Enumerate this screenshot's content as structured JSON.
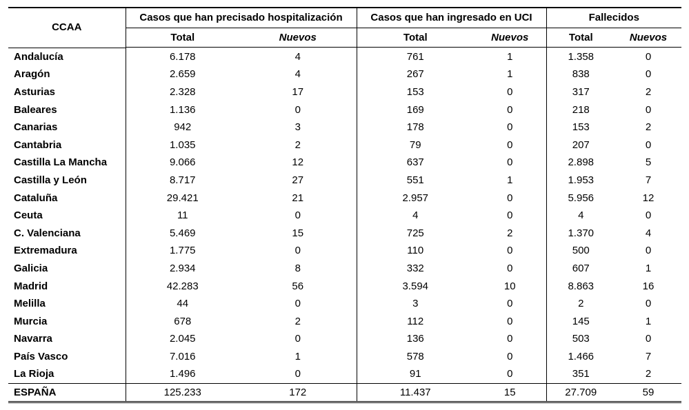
{
  "header": {
    "region_col": "CCAA",
    "groups": [
      "Casos que han precisado hospitalización",
      "Casos que han ingresado en UCI",
      "Fallecidos"
    ],
    "sub_total": "Total",
    "sub_new": "Nuevos"
  },
  "rows": [
    {
      "name": "Andalucía",
      "hosp_total": "6.178",
      "hosp_new": "4",
      "uci_total": "761",
      "uci_new": "1",
      "fall_total": "1.358",
      "fall_new": "0"
    },
    {
      "name": "Aragón",
      "hosp_total": "2.659",
      "hosp_new": "4",
      "uci_total": "267",
      "uci_new": "1",
      "fall_total": "838",
      "fall_new": "0"
    },
    {
      "name": "Asturias",
      "hosp_total": "2.328",
      "hosp_new": "17",
      "uci_total": "153",
      "uci_new": "0",
      "fall_total": "317",
      "fall_new": "2"
    },
    {
      "name": "Baleares",
      "hosp_total": "1.136",
      "hosp_new": "0",
      "uci_total": "169",
      "uci_new": "0",
      "fall_total": "218",
      "fall_new": "0"
    },
    {
      "name": "Canarias",
      "hosp_total": "942",
      "hosp_new": "3",
      "uci_total": "178",
      "uci_new": "0",
      "fall_total": "153",
      "fall_new": "2"
    },
    {
      "name": "Cantabria",
      "hosp_total": "1.035",
      "hosp_new": "2",
      "uci_total": "79",
      "uci_new": "0",
      "fall_total": "207",
      "fall_new": "0"
    },
    {
      "name": "Castilla La Mancha",
      "hosp_total": "9.066",
      "hosp_new": "12",
      "uci_total": "637",
      "uci_new": "0",
      "fall_total": "2.898",
      "fall_new": "5"
    },
    {
      "name": "Castilla y León",
      "hosp_total": "8.717",
      "hosp_new": "27",
      "uci_total": "551",
      "uci_new": "1",
      "fall_total": "1.953",
      "fall_new": "7"
    },
    {
      "name": "Cataluña",
      "hosp_total": "29.421",
      "hosp_new": "21",
      "uci_total": "2.957",
      "uci_new": "0",
      "fall_total": "5.956",
      "fall_new": "12"
    },
    {
      "name": "Ceuta",
      "hosp_total": "11",
      "hosp_new": "0",
      "uci_total": "4",
      "uci_new": "0",
      "fall_total": "4",
      "fall_new": "0"
    },
    {
      "name": "C. Valenciana",
      "hosp_total": "5.469",
      "hosp_new": "15",
      "uci_total": "725",
      "uci_new": "2",
      "fall_total": "1.370",
      "fall_new": "4"
    },
    {
      "name": "Extremadura",
      "hosp_total": "1.775",
      "hosp_new": "0",
      "uci_total": "110",
      "uci_new": "0",
      "fall_total": "500",
      "fall_new": "0"
    },
    {
      "name": "Galicia",
      "hosp_total": "2.934",
      "hosp_new": "8",
      "uci_total": "332",
      "uci_new": "0",
      "fall_total": "607",
      "fall_new": "1"
    },
    {
      "name": "Madrid",
      "hosp_total": "42.283",
      "hosp_new": "56",
      "uci_total": "3.594",
      "uci_new": "10",
      "fall_total": "8.863",
      "fall_new": "16"
    },
    {
      "name": "Melilla",
      "hosp_total": "44",
      "hosp_new": "0",
      "uci_total": "3",
      "uci_new": "0",
      "fall_total": "2",
      "fall_new": "0"
    },
    {
      "name": "Murcia",
      "hosp_total": "678",
      "hosp_new": "2",
      "uci_total": "112",
      "uci_new": "0",
      "fall_total": "145",
      "fall_new": "1"
    },
    {
      "name": "Navarra",
      "hosp_total": "2.045",
      "hosp_new": "0",
      "uci_total": "136",
      "uci_new": "0",
      "fall_total": "503",
      "fall_new": "0"
    },
    {
      "name": "País Vasco",
      "hosp_total": "7.016",
      "hosp_new": "1",
      "uci_total": "578",
      "uci_new": "0",
      "fall_total": "1.466",
      "fall_new": "7"
    },
    {
      "name": "La Rioja",
      "hosp_total": "1.496",
      "hosp_new": "0",
      "uci_total": "91",
      "uci_new": "0",
      "fall_total": "351",
      "fall_new": "2"
    }
  ],
  "total": {
    "name": "ESPAÑA",
    "hosp_total": "125.233",
    "hosp_new": "172",
    "uci_total": "11.437",
    "uci_new": "15",
    "fall_total": "27.709",
    "fall_new": "59"
  }
}
